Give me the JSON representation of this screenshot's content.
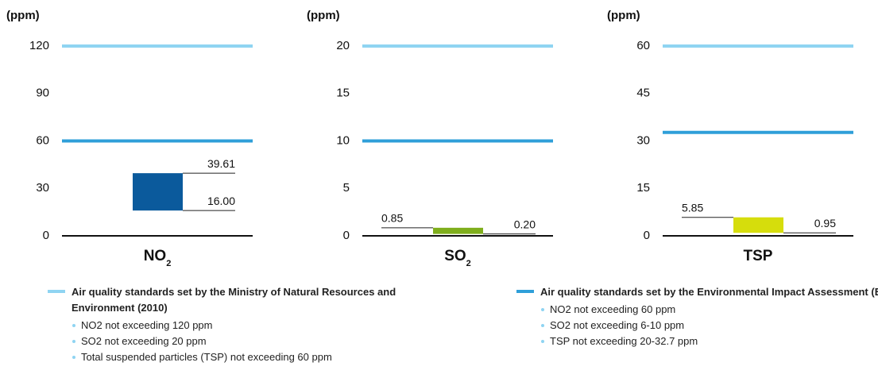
{
  "chart_data": [
    {
      "type": "floating_bar",
      "y_label": "(ppm)",
      "title": "NO",
      "title_sub": "2",
      "ylim": [
        0,
        120
      ],
      "yticks": [
        0,
        30,
        60,
        90,
        120
      ],
      "values": [
        16,
        39.61
      ],
      "value_labels": [
        "16.00",
        "39.61"
      ],
      "color": "#0b5a9c",
      "reference_lines": [
        {
          "value": 120,
          "color": "#8fd4f2"
        },
        {
          "value": 60,
          "color": "#2f9fd9"
        }
      ]
    },
    {
      "type": "floating_bar",
      "y_label": "(ppm)",
      "title": "SO",
      "title_sub": "2",
      "ylim": [
        0,
        20
      ],
      "yticks": [
        0,
        5,
        10,
        15,
        20
      ],
      "values": [
        0.2,
        0.85
      ],
      "value_labels": [
        "0.20",
        "0.85"
      ],
      "color": "#7fae1c",
      "reference_lines": [
        {
          "value": 20,
          "color": "#8fd4f2"
        },
        {
          "value": 10,
          "color": "#2f9fd9"
        }
      ]
    },
    {
      "type": "floating_bar",
      "y_label": "(ppm)",
      "title": "TSP",
      "ylim": [
        0,
        60
      ],
      "yticks": [
        0,
        15,
        30,
        45,
        60
      ],
      "values": [
        0.95,
        5.85
      ],
      "color": "#d6dd0c",
      "reference_lines": [
        {
          "value": 60,
          "color": "#8fd4f2"
        },
        {
          "value": 32.7,
          "color": "#2f9fd9"
        }
      ]
    }
  ],
  "legend": [
    {
      "color": "#8fd4f2",
      "title": "Air quality standards set by the Ministry of Natural Resources and Environment (2010)",
      "items": [
        "NO2 not exceeding 120 ppm",
        "SO2 not exceeding 20 ppm",
        "Total suspended particles (TSP) not exceeding 60 ppm"
      ]
    },
    {
      "color": "#2f9fd9",
      "title": "Air quality standards set by the Environmental Impact Assessment (EIA)",
      "items": [
        "NO2 not exceeding 60 ppm",
        "SO2 not exceeding 6-10 ppm",
        "TSP not exceeding 20-32.7 ppm"
      ]
    }
  ]
}
